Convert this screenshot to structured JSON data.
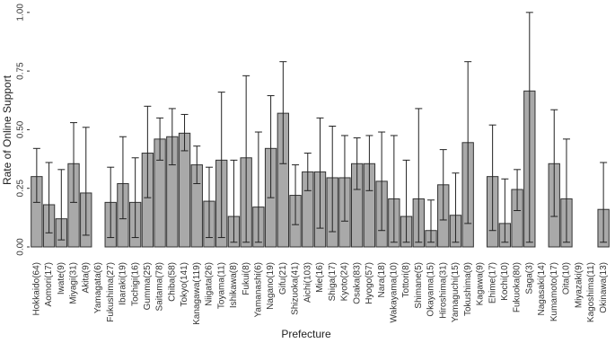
{
  "chart_data": {
    "type": "bar",
    "x_label": "Prefecture",
    "y_label": "Rate of Online Support",
    "categories": [
      "Hokkaido(64)",
      "Aomori(17)",
      "Iwate(9)",
      "Miyagi(31)",
      "Akita(9)",
      "Yamagata(6)",
      "Fukushima(27)",
      "Ibaraki(19)",
      "Tochigi(16)",
      "Gumma(25)",
      "Saitama(78)",
      "Chiba(58)",
      "Tokyo(141)",
      "Kanagawa(119)",
      "Niigata(26)",
      "Toyama(11)",
      "Ishikawa(8)",
      "Fukui(8)",
      "Yamanashi(6)",
      "Nagano(19)",
      "Gifu(21)",
      "Shizuoka(41)",
      "Aichi(103)",
      "Mie(16)",
      "Shiga(17)",
      "Kyoto(24)",
      "Osaka(83)",
      "Hyogo(57)",
      "Nara(18)",
      "Wakayama(10)",
      "Tottori(8)",
      "Shimane(5)",
      "Okayama(15)",
      "Hiroshima(31)",
      "Yamaguchi(15)",
      "Tokushima(9)",
      "Kagawa(9)",
      "Ehime(17)",
      "Kochi(10)",
      "Fukuoka(80)",
      "Saga(3)",
      "Nagasaki(14)",
      "Kumamoto(17)",
      "Oita(10)",
      "Miyazaki(9)",
      "Kagoshima(11)",
      "Okinawa(13)"
    ],
    "values": [
      0.3,
      0.18,
      0.12,
      0.355,
      0.23,
      0,
      0.19,
      0.27,
      0.19,
      0.4,
      0.46,
      0.47,
      0.485,
      0.35,
      0.195,
      0.37,
      0.13,
      0.38,
      0.17,
      0.42,
      0.57,
      0.22,
      0.32,
      0.32,
      0.295,
      0.295,
      0.355,
      0.355,
      0.28,
      0.205,
      0.13,
      0.205,
      0.07,
      0.265,
      0.135,
      0.445,
      0,
      0.3,
      0.1,
      0.245,
      0.665,
      0,
      0.355,
      0.205,
      0,
      0,
      0.16
    ],
    "ci_lower": [
      0.19,
      0.06,
      0.03,
      0.19,
      0.05,
      null,
      0.04,
      0.12,
      0.04,
      0.21,
      0.37,
      0.35,
      0.41,
      0.27,
      0.04,
      0.04,
      0.02,
      0.02,
      0.02,
      0.21,
      0.355,
      0.095,
      0.24,
      0.08,
      0.065,
      0.11,
      0.245,
      0.24,
      0.07,
      0.02,
      0.02,
      0.02,
      0.02,
      0.115,
      0.02,
      0.1,
      null,
      0.07,
      0.02,
      0.155,
      0.02,
      null,
      0.13,
      0.02,
      null,
      null,
      0.02
    ],
    "ci_upper": [
      0.42,
      0.36,
      0.33,
      0.53,
      0.51,
      null,
      0.34,
      0.47,
      0.38,
      0.6,
      0.55,
      0.59,
      0.565,
      0.43,
      0.34,
      0.66,
      0.37,
      0.73,
      0.49,
      0.645,
      0.79,
      0.35,
      0.4,
      0.55,
      0.515,
      0.475,
      0.465,
      0.475,
      0.49,
      0.475,
      0.37,
      0.59,
      0.2,
      0.415,
      0.315,
      0.79,
      null,
      0.52,
      0.29,
      0.33,
      1.0,
      null,
      0.585,
      0.46,
      null,
      null,
      0.36
    ],
    "color": "#a9a9a9",
    "ylim": [
      0,
      1.03
    ],
    "yticks": [
      {
        "value": 0,
        "label": "0.00"
      },
      {
        "value": 0.25,
        "label": "0.25"
      },
      {
        "value": 0.5,
        "label": "0.50"
      },
      {
        "value": 0.75,
        "label": "0.75"
      },
      {
        "value": 1,
        "label": "1.00"
      }
    ],
    "grid": false
  }
}
